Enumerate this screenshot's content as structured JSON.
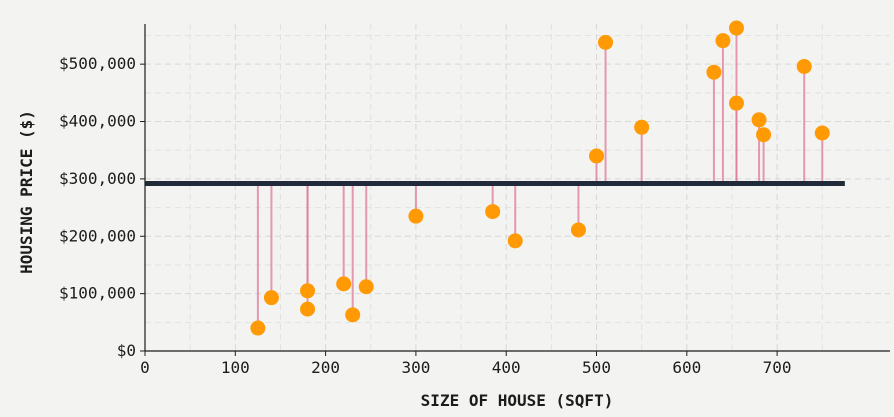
{
  "chart_data": {
    "type": "scatter",
    "xlabel": "SIZE OF HOUSE (SQFT)",
    "ylabel": "HOUSING PRICE ($)",
    "xlim": [
      0,
      825
    ],
    "ylim": [
      0,
      570000
    ],
    "x_ticks": [
      0,
      100,
      200,
      300,
      400,
      500,
      600,
      700
    ],
    "x_tick_labels": [
      "0",
      "100",
      "200",
      "300",
      "400",
      "500",
      "600",
      "700"
    ],
    "y_ticks": [
      0,
      100000,
      200000,
      300000,
      400000,
      500000
    ],
    "y_tick_labels": [
      "$0",
      "$100,000",
      "$200,000",
      "$300,000",
      "$400,000",
      "$500,000"
    ],
    "grid": true,
    "reference_line": {
      "y": 292000,
      "x_range": [
        0,
        775
      ]
    },
    "points": [
      {
        "x": 125,
        "y": 40000
      },
      {
        "x": 140,
        "y": 93000
      },
      {
        "x": 180,
        "y": 105000
      },
      {
        "x": 180,
        "y": 73000
      },
      {
        "x": 220,
        "y": 117000
      },
      {
        "x": 230,
        "y": 63000
      },
      {
        "x": 245,
        "y": 112000
      },
      {
        "x": 300,
        "y": 235000
      },
      {
        "x": 385,
        "y": 243000
      },
      {
        "x": 410,
        "y": 192000
      },
      {
        "x": 480,
        "y": 211000
      },
      {
        "x": 500,
        "y": 340000
      },
      {
        "x": 510,
        "y": 538000
      },
      {
        "x": 550,
        "y": 390000
      },
      {
        "x": 630,
        "y": 486000
      },
      {
        "x": 640,
        "y": 541000
      },
      {
        "x": 655,
        "y": 563000
      },
      {
        "x": 655,
        "y": 432000
      },
      {
        "x": 680,
        "y": 403000
      },
      {
        "x": 685,
        "y": 377000
      },
      {
        "x": 730,
        "y": 496000
      },
      {
        "x": 750,
        "y": 380000
      }
    ],
    "colors": {
      "point": "#ff9a05",
      "stem": "#e07a9a",
      "reference_line": "#202a38",
      "axis": "#1c1c1c",
      "grid": "#d8d8d6",
      "background": "#f3f3f2"
    }
  }
}
